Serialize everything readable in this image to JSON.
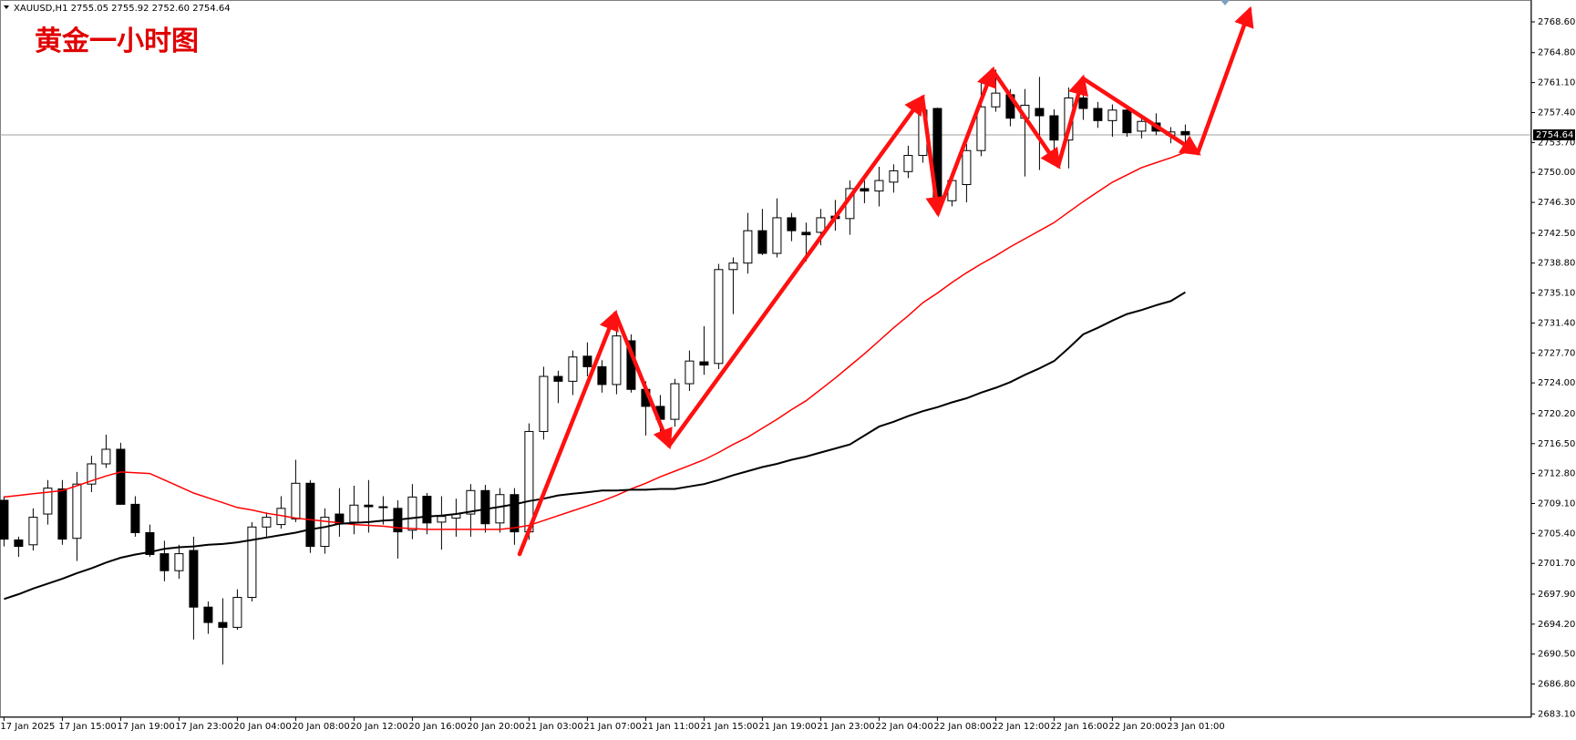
{
  "header": {
    "text": "XAUUSD,H1  2755.05 2755.92 2752.60 2754.64"
  },
  "chart_data": {
    "type": "candlestick",
    "title": "黄金一小时图",
    "categories": [
      "17 Jan 2025",
      null,
      null,
      null,
      "17 Jan 15:00",
      null,
      null,
      null,
      "17 Jan 19:00",
      null,
      null,
      null,
      "17 Jan 23:00",
      null,
      null,
      null,
      "20 Jan 04:00",
      null,
      null,
      null,
      "20 Jan 08:00",
      null,
      null,
      null,
      "20 Jan 12:00",
      null,
      null,
      null,
      "20 Jan 16:00",
      null,
      null,
      null,
      "20 Jan 20:00",
      null,
      null,
      null,
      "21 Jan 03:00",
      null,
      null,
      null,
      "21 Jan 07:00",
      null,
      null,
      null,
      "21 Jan 11:00",
      null,
      null,
      null,
      "21 Jan 15:00",
      null,
      null,
      null,
      "21 Jan 19:00",
      null,
      null,
      null,
      "21 Jan 23:00",
      null,
      null,
      null,
      "22 Jan 04:00",
      null,
      null,
      null,
      "22 Jan 08:00",
      null,
      null,
      null,
      "22 Jan 12:00",
      null,
      null,
      null,
      "22 Jan 16:00",
      null,
      null,
      null,
      "22 Jan 20:00",
      null,
      null,
      null,
      "23 Jan 01:00",
      null
    ],
    "open": [
      2709.5,
      2704.6,
      2704,
      2707.8,
      2710.9,
      2704.8,
      2711.5,
      2714,
      2715.8,
      2709,
      2705.5,
      2702.9,
      2700.8,
      2703.3,
      2696.3,
      2694.4,
      2693.8,
      2697.5,
      2706.2,
      2706.5,
      2707.2,
      2711.6,
      2703.8,
      2707.8,
      2706.8,
      2708.9,
      2708.7,
      2708.5,
      2705.8,
      2710,
      2706.8,
      2707.3,
      2707.8,
      2710.7,
      2706.7,
      2710.2,
      2705.6,
      2718,
      2724.8,
      2724.2,
      2727.3,
      2726,
      2723.8,
      2729.2,
      2723.2,
      2721.1,
      2719.5,
      2723.9,
      2726.6,
      2726.4,
      2738,
      2738.8,
      2742.8,
      2740,
      2744.4,
      2742.6,
      2742.6,
      2744.6,
      2744.3,
      2748,
      2747.7,
      2748.8,
      2750.1,
      2752.1,
      2757.9,
      2746.5,
      2748.5,
      2752.7,
      2758.1,
      2759.6,
      2756.7,
      2757.9,
      2757,
      2754,
      2759.2,
      2757.9,
      2756.4,
      2757.7,
      2755.1,
      2756.1,
      2754.6,
      2755.05
    ],
    "high": [
      2710,
      2705,
      2708.5,
      2712,
      2712,
      2713,
      2715,
      2717.6,
      2716.6,
      2710,
      2706.5,
      2704.5,
      2704,
      2705,
      2697,
      2697.4,
      2698.5,
      2706.8,
      2708,
      2710,
      2714.5,
      2712,
      2708.5,
      2711,
      2711.3,
      2712,
      2710,
      2709.5,
      2711.5,
      2710.4,
      2710,
      2709.7,
      2711.5,
      2711.4,
      2711,
      2711,
      2719,
      2726,
      2725.5,
      2728,
      2729,
      2726.8,
      2730.7,
      2730,
      2724.2,
      2722.5,
      2724.5,
      2728,
      2731,
      2738.7,
      2739.5,
      2745,
      2745.5,
      2746.8,
      2745,
      2743.8,
      2745.5,
      2746.6,
      2749,
      2749,
      2750.7,
      2751,
      2753.3,
      2758.5,
      2758,
      2750,
      2753.5,
      2761.5,
      2762.7,
      2760.3,
      2760.3,
      2761.8,
      2757.8,
      2760.5,
      2760,
      2758.7,
      2758.4,
      2758.3,
      2757,
      2757.3,
      2755.6,
      2755.92
    ],
    "low": [
      2703.8,
      2702.5,
      2703.3,
      2706.5,
      2704,
      2702,
      2710.5,
      2713.5,
      2709,
      2705,
      2702.5,
      2699.5,
      2699.8,
      2692.3,
      2693,
      2689.2,
      2693.5,
      2697,
      2705,
      2706,
      2706.8,
      2703,
      2702.9,
      2705,
      2705.3,
      2705.5,
      2706.5,
      2702.3,
      2704.7,
      2705.3,
      2703.4,
      2705,
      2705,
      2705.5,
      2705.5,
      2704,
      2704.6,
      2717,
      2721.5,
      2722.5,
      2724.8,
      2722.8,
      2722.6,
      2722.8,
      2717.5,
      2718,
      2718.6,
      2723,
      2725,
      2725.7,
      2732.5,
      2737.5,
      2739.8,
      2739.5,
      2741.5,
      2739,
      2741,
      2742.8,
      2742.3,
      2746.2,
      2745.8,
      2747.5,
      2749.3,
      2751.2,
      2745.5,
      2745.8,
      2746.3,
      2752,
      2757.5,
      2755.7,
      2749.5,
      2750.3,
      2751.7,
      2750.5,
      2756.5,
      2755.5,
      2754.4,
      2754.4,
      2754.2,
      2754.6,
      2753.6,
      2752.6
    ],
    "close": [
      2704.7,
      2703.8,
      2707.4,
      2711,
      2704.7,
      2711.5,
      2714,
      2715.8,
      2709,
      2705.5,
      2702.8,
      2700.8,
      2702.9,
      2696.3,
      2694.4,
      2693.8,
      2697.5,
      2706.2,
      2707.4,
      2708.5,
      2711.6,
      2703.8,
      2707.4,
      2706.6,
      2708.9,
      2708.7,
      2708.6,
      2705.6,
      2709.9,
      2706.7,
      2707.5,
      2707.8,
      2710.7,
      2706.6,
      2710.2,
      2705.6,
      2718,
      2724.8,
      2724.2,
      2727.2,
      2726,
      2723.8,
      2729.8,
      2723.2,
      2721.1,
      2719.5,
      2723.9,
      2726.7,
      2726.2,
      2738,
      2738.8,
      2742.8,
      2740,
      2744.4,
      2742.8,
      2742.3,
      2744.4,
      2744.3,
      2748,
      2747.7,
      2749,
      2750.2,
      2752.1,
      2757.7,
      2746.5,
      2749,
      2752.7,
      2758.1,
      2759.8,
      2756.7,
      2758.3,
      2757,
      2754,
      2759.2,
      2757.9,
      2756.4,
      2757.7,
      2754.9,
      2756.3,
      2755.1,
      2755,
      2754.64
    ],
    "up_color": "#ffffff",
    "down_color": "#000000",
    "lines": [
      {
        "color": "#ff0000",
        "values": [
          2709.9,
          2710.1,
          2710.3,
          2710.5,
          2710.7,
          2711.3,
          2711.9,
          2712.5,
          2713.0,
          2712.9,
          2712.8,
          2712.0,
          2711.2,
          2710.4,
          2709.8,
          2709.2,
          2708.6,
          2708.3,
          2707.9,
          2707.6,
          2707.3,
          2707.1,
          2706.9,
          2706.7,
          2706.5,
          2706.4,
          2706.3,
          2706.1,
          2706.0,
          2705.9,
          2705.9,
          2705.9,
          2705.9,
          2705.9,
          2705.9,
          2706.1,
          2706.4,
          2707.0,
          2707.6,
          2708.2,
          2708.8,
          2709.4,
          2710.1,
          2710.9,
          2711.6,
          2712.4,
          2713.1,
          2713.8,
          2714.5,
          2715.4,
          2716.4,
          2717.3,
          2718.4,
          2719.5,
          2720.7,
          2721.8,
          2723.2,
          2724.6,
          2726.1,
          2727.6,
          2729.2,
          2730.8,
          2732.3,
          2733.9,
          2735.1,
          2736.4,
          2737.6,
          2738.7,
          2739.7,
          2740.8,
          2741.8,
          2742.8,
          2743.8,
          2745.1,
          2746.4,
          2747.6,
          2748.8,
          2749.7,
          2750.6,
          2751.2,
          2751.8,
          2752.5
        ]
      },
      {
        "color": "#000000",
        "values": [
          2697.3,
          2697.9,
          2698.6,
          2699.2,
          2699.8,
          2700.5,
          2701.1,
          2701.8,
          2702.4,
          2702.8,
          2703.1,
          2703.5,
          2703.7,
          2703.8,
          2704.0,
          2704.1,
          2704.3,
          2704.6,
          2704.9,
          2705.2,
          2705.5,
          2705.9,
          2706.2,
          2706.6,
          2706.7,
          2706.8,
          2707.0,
          2707.1,
          2707.3,
          2707.5,
          2707.6,
          2707.8,
          2708.1,
          2708.4,
          2708.7,
          2709.0,
          2709.4,
          2709.7,
          2710.1,
          2710.3,
          2710.5,
          2710.7,
          2710.7,
          2710.8,
          2710.8,
          2710.9,
          2710.9,
          2711.2,
          2711.5,
          2712.0,
          2712.6,
          2713.1,
          2713.6,
          2714.0,
          2714.5,
          2714.9,
          2715.4,
          2715.9,
          2716.4,
          2717.5,
          2718.6,
          2719.2,
          2719.9,
          2720.5,
          2721.0,
          2721.6,
          2722.1,
          2722.8,
          2723.4,
          2724.1,
          2725.0,
          2725.8,
          2726.7,
          2728.3,
          2730.0,
          2730.8,
          2731.7,
          2732.5,
          2733.0,
          2733.6,
          2734.1,
          2735.2
        ]
      }
    ],
    "current_price": {
      "value": 2754.64,
      "label": "2754.64"
    },
    "ylim": [
      2682.7,
      2771.3
    ],
    "yticks": [
      {
        "value": 2683.1,
        "label": "2683.10"
      },
      {
        "value": 2686.8,
        "label": "2686.80"
      },
      {
        "value": 2690.5,
        "label": "2690.50"
      },
      {
        "value": 2694.2,
        "label": "2694.20"
      },
      {
        "value": 2697.9,
        "label": "2697.90"
      },
      {
        "value": 2701.7,
        "label": "2701.70"
      },
      {
        "value": 2705.4,
        "label": "2705.40"
      },
      {
        "value": 2709.1,
        "label": "2709.10"
      },
      {
        "value": 2712.8,
        "label": "2712.80"
      },
      {
        "value": 2716.5,
        "label": "2716.50"
      },
      {
        "value": 2720.2,
        "label": "2720.20"
      },
      {
        "value": 2724,
        "label": "2724.00"
      },
      {
        "value": 2727.7,
        "label": "2727.70"
      },
      {
        "value": 2731.4,
        "label": "2731.40"
      },
      {
        "value": 2735.1,
        "label": "2735.10"
      },
      {
        "value": 2738.8,
        "label": "2738.80"
      },
      {
        "value": 2742.5,
        "label": "2742.50"
      },
      {
        "value": 2746.3,
        "label": "2746.30"
      },
      {
        "value": 2750,
        "label": "2750.00"
      },
      {
        "value": 2753.7,
        "label": "2753.70"
      },
      {
        "value": 2757.4,
        "label": "2757.40"
      },
      {
        "value": 2761.1,
        "label": "2761.10"
      },
      {
        "value": 2764.8,
        "label": "2764.80"
      },
      {
        "value": 2768.6,
        "label": "2768.60"
      }
    ],
    "grid": false
  }
}
